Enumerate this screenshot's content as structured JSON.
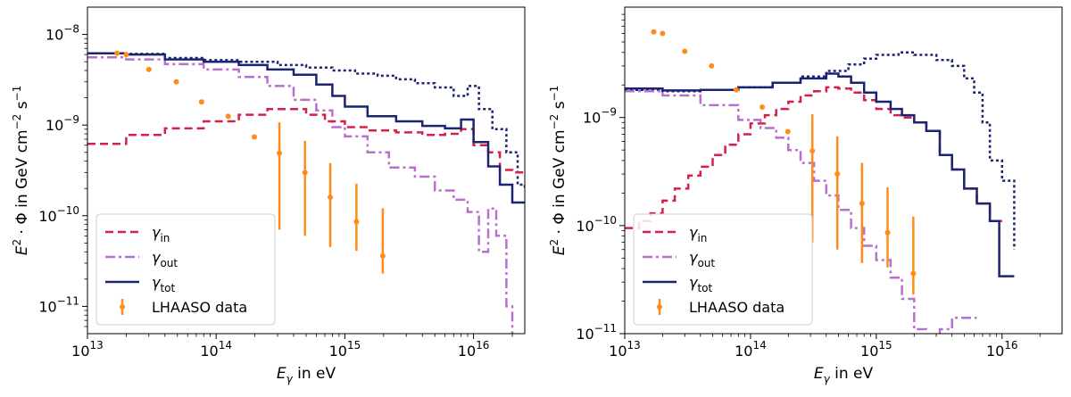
{
  "colors": {
    "gamma_in": "#d6204a",
    "gamma_out": "#b86fd0",
    "gamma_tot": "#1b2470",
    "total_dotted": "#1b2470",
    "lhaaso": "#ff8c1a"
  },
  "legend": {
    "gamma_in": {
      "sym": "γ",
      "sub": "in"
    },
    "gamma_out": {
      "sym": "γ",
      "sub": "out"
    },
    "gamma_tot": {
      "sym": "γ",
      "sub": "tot"
    },
    "lhaaso": "LHAASO data"
  },
  "axes": {
    "xlabel": {
      "E": "E",
      "sub": "γ",
      "rest": " in eV"
    },
    "ylabel": {
      "pre": "E",
      "sup": "2",
      "mid": " · Φ in GeV cm",
      "sup2": "−2",
      "mid2": " s",
      "sup3": "−1"
    }
  },
  "chart_data": [
    {
      "type": "line",
      "xscale": "log",
      "yscale": "log",
      "xlim": [
        10000000000000.0,
        2.5e+16
      ],
      "ylim": [
        5e-12,
        2e-08
      ],
      "xticks": [
        {
          "base": "10",
          "exp": "13",
          "v": 10000000000000.0
        },
        {
          "base": "10",
          "exp": "14",
          "v": 100000000000000.0
        },
        {
          "base": "10",
          "exp": "15",
          "v": 1000000000000000.0
        },
        {
          "base": "10",
          "exp": "16",
          "v": 1e+16
        }
      ],
      "yticks": [
        {
          "base": "10",
          "exp": "−11",
          "v": 1e-11
        },
        {
          "base": "10",
          "exp": "−10",
          "v": 1e-10
        },
        {
          "base": "10",
          "exp": "−9",
          "v": 1e-09
        },
        {
          "base": "10",
          "exp": "−8",
          "v": 1e-08
        }
      ],
      "legend_position": "lower-left",
      "series": [
        {
          "name": "gamma_tot_dotted",
          "style": "dotted",
          "x": [
            10000000000000.0,
            20000000000000.0,
            40000000000000.0,
            80000000000000.0,
            150000000000000.0,
            300000000000000.0,
            500000000000000.0,
            800000000000000.0,
            1200000000000000.0,
            1800000000000000.0,
            2500000000000000.0,
            3500000000000000.0,
            5000000000000000.0,
            7000000000000000.0,
            9000000000000000.0,
            1.1e+16,
            1.4e+16,
            1.8e+16,
            2.2e+16,
            2.5e+16
          ],
          "y": [
            6.2e-09,
            6.1e-09,
            5.5e-09,
            5.2e-09,
            5e-09,
            4.6e-09,
            4.3e-09,
            4e-09,
            3.7e-09,
            3.5e-09,
            3.2e-09,
            2.9e-09,
            2.6e-09,
            2.1e-09,
            2.7e-09,
            1.5e-09,
            9e-10,
            5e-10,
            2.2e-10,
            2e-10
          ]
        },
        {
          "name": "gamma_out",
          "style": "dashdot",
          "x": [
            10000000000000.0,
            20000000000000.0,
            40000000000000.0,
            80000000000000.0,
            150000000000000.0,
            250000000000000.0,
            400000000000000.0,
            600000000000000.0,
            800000000000000.0,
            1000000000000000.0,
            1500000000000000.0,
            2200000000000000.0,
            3500000000000000.0,
            5000000000000000.0,
            7000000000000000.0,
            9000000000000000.0,
            1.1e+16,
            1.3e+16,
            1.5e+16,
            1.8e+16,
            2e+16
          ],
          "y": [
            5.6e-09,
            5.3e-09,
            4.7e-09,
            4.1e-09,
            3.4e-09,
            2.7e-09,
            1.9e-09,
            1.45e-09,
            9.5e-10,
            7.5e-10,
            5e-10,
            3.4e-10,
            2.7e-10,
            1.9e-10,
            1.5e-10,
            1.1e-10,
            4e-11,
            1.2e-10,
            6e-11,
            1e-11,
            3e-12
          ]
        },
        {
          "name": "gamma_in",
          "style": "dashed",
          "x": [
            10000000000000.0,
            20000000000000.0,
            40000000000000.0,
            80000000000000.0,
            150000000000000.0,
            250000000000000.0,
            350000000000000.0,
            500000000000000.0,
            700000000000000.0,
            1000000000000000.0,
            1500000000000000.0,
            2500000000000000.0,
            4000000000000000.0,
            6000000000000000.0,
            8000000000000000.0,
            1e+16,
            1.3e+16,
            1.6e+16,
            2e+16,
            2.5e+16
          ],
          "y": [
            6.2e-10,
            7.8e-10,
            9.2e-10,
            1.1e-09,
            1.3e-09,
            1.5e-09,
            1.5e-09,
            1.3e-09,
            1.1e-09,
            9.5e-10,
            8.7e-10,
            8.3e-10,
            7.8e-10,
            8e-10,
            9e-10,
            6e-10,
            5e-10,
            3.2e-10,
            3e-10,
            3e-10
          ]
        },
        {
          "name": "gamma_tot",
          "style": "solid",
          "x": [
            10000000000000.0,
            20000000000000.0,
            40000000000000.0,
            80000000000000.0,
            150000000000000.0,
            250000000000000.0,
            400000000000000.0,
            600000000000000.0,
            800000000000000.0,
            1000000000000000.0,
            1500000000000000.0,
            2500000000000000.0,
            4000000000000000.0,
            6000000000000000.0,
            8000000000000000.0,
            1e+16,
            1.3e+16,
            1.6e+16,
            2e+16,
            2.5e+16
          ],
          "y": [
            6.2e-09,
            6e-09,
            5.3e-09,
            5e-09,
            4.6e-09,
            4.1e-09,
            3.6e-09,
            2.8e-09,
            2.1e-09,
            1.6e-09,
            1.25e-09,
            1.1e-09,
            9.8e-10,
            9.2e-10,
            1.15e-09,
            6.5e-10,
            3.5e-10,
            2.2e-10,
            1.4e-10,
            1.4e-10
          ]
        }
      ],
      "points": {
        "name": "LHAASO data",
        "x": [
          17000000000000.0,
          20000000000000.0,
          30000000000000.0,
          49000000000000.0,
          77000000000000.0,
          124000000000000.0,
          198000000000000.0,
          310000000000000.0,
          490000000000000.0,
          770000000000000.0,
          1230000000000000.0,
          1970000000000000.0
        ],
        "y": [
          6.2e-09,
          6e-09,
          4.1e-09,
          3e-09,
          1.8e-09,
          1.25e-09,
          7.4e-10,
          4.9e-10,
          3e-10,
          1.6e-10,
          8.6e-11,
          3.6e-11
        ],
        "err": [
          [
            0,
            0
          ],
          [
            0,
            0
          ],
          [
            0,
            0
          ],
          [
            0,
            0
          ],
          [
            0,
            0
          ],
          [
            0,
            0
          ],
          [
            0,
            0
          ],
          [
            4.2e-10,
            5.8e-10
          ],
          [
            2.4e-10,
            3.7e-10
          ],
          [
            1.15e-10,
            2.2e-10
          ],
          [
            4.5e-11,
            1.4e-10
          ],
          [
            1.3e-11,
            8.5e-11
          ]
        ]
      }
    },
    {
      "type": "line",
      "xscale": "log",
      "yscale": "log",
      "xlim": [
        10000000000000.0,
        3e+16
      ],
      "ylim": [
        1e-11,
        1.05e-08
      ],
      "xticks": [
        {
          "base": "10",
          "exp": "13",
          "v": 10000000000000.0
        },
        {
          "base": "10",
          "exp": "14",
          "v": 100000000000000.0
        },
        {
          "base": "10",
          "exp": "15",
          "v": 1000000000000000.0
        },
        {
          "base": "10",
          "exp": "16",
          "v": 1e+16
        }
      ],
      "yticks": [
        {
          "base": "10",
          "exp": "−11",
          "v": 1e-11
        },
        {
          "base": "10",
          "exp": "−10",
          "v": 1e-10
        },
        {
          "base": "10",
          "exp": "−9",
          "v": 1e-09
        }
      ],
      "legend_position": "lower-left",
      "series": [
        {
          "name": "gamma_tot_dotted",
          "style": "dotted",
          "x": [
            10000000000000.0,
            20000000000000.0,
            40000000000000.0,
            80000000000000.0,
            150000000000000.0,
            250000000000000.0,
            400000000000000.0,
            600000000000000.0,
            800000000000000.0,
            1000000000000000.0,
            1500000000000000.0,
            2000000000000000.0,
            3000000000000000.0,
            4000000000000000.0,
            5000000000000000.0,
            6000000000000000.0,
            7000000000000000.0,
            8000000000000000.0,
            1e+16,
            1.25e+16
          ],
          "y": [
            1.8e-09,
            1.75e-09,
            1.8e-09,
            1.9e-09,
            2.1e-09,
            2.4e-09,
            2.7e-09,
            3.1e-09,
            3.5e-09,
            3.8e-09,
            4e-09,
            3.8e-09,
            3.4e-09,
            3e-09,
            2.3e-09,
            1.7e-09,
            9e-10,
            4e-10,
            2.6e-10,
            6e-11
          ]
        },
        {
          "name": "gamma_in",
          "style": "dashed",
          "x": [
            10000000000000.0,
            13000000000000.0,
            16000000000000.0,
            20000000000000.0,
            25000000000000.0,
            32000000000000.0,
            40000000000000.0,
            50000000000000.0,
            63000000000000.0,
            80000000000000.0,
            100000000000000.0,
            130000000000000.0,
            160000000000000.0,
            200000000000000.0,
            250000000000000.0,
            320000000000000.0,
            400000000000000.0,
            500000000000000.0,
            630000000000000.0,
            800000000000000.0,
            1000000000000000.0,
            1300000000000000.0,
            1600000000000000.0,
            2000000000000000.0,
            2500000000000000.0,
            3200000000000000.0,
            4000000000000000.0,
            5000000000000000.0,
            6300000000000000.0,
            8000000000000000.0,
            1e+16
          ],
          "y": [
            9.5e-11,
            1.1e-10,
            1.3e-10,
            1.7e-10,
            2.2e-10,
            2.9e-10,
            3.5e-10,
            4.5e-10,
            5.6e-10,
            7e-10,
            8.8e-10,
            1.05e-09,
            1.2e-09,
            1.4e-09,
            1.6e-09,
            1.75e-09,
            1.9e-09,
            1.85e-09,
            1.7e-09,
            1.45e-09,
            1.2e-09,
            1.05e-09,
            1e-09,
            9e-10,
            7.5e-10,
            4.5e-10,
            3.3e-10,
            2.2e-10,
            1.6e-10,
            1.1e-10,
            1.1e-10
          ]
        },
        {
          "name": "gamma_out",
          "style": "dashdot",
          "x": [
            10000000000000.0,
            20000000000000.0,
            40000000000000.0,
            80000000000000.0,
            120000000000000.0,
            160000000000000.0,
            200000000000000.0,
            250000000000000.0,
            320000000000000.0,
            400000000000000.0,
            500000000000000.0,
            630000000000000.0,
            800000000000000.0,
            1000000000000000.0,
            1300000000000000.0,
            1600000000000000.0,
            2000000000000000.0,
            2500000000000000.0,
            3200000000000000.0,
            4000000000000000.0,
            5000000000000000.0,
            6300000000000000.0
          ],
          "y": [
            1.75e-09,
            1.6e-09,
            1.3e-09,
            9.5e-10,
            8e-10,
            6.5e-10,
            5e-10,
            3.8e-10,
            2.6e-10,
            1.9e-10,
            1.4e-10,
            9.5e-11,
            6.5e-11,
            4.8e-11,
            3.3e-11,
            2.1e-11,
            1.1e-11,
            7e-12,
            1.1e-11,
            1.4e-11,
            1.4e-11,
            1.4e-11
          ]
        },
        {
          "name": "gamma_tot",
          "style": "solid",
          "x": [
            10000000000000.0,
            20000000000000.0,
            40000000000000.0,
            80000000000000.0,
            150000000000000.0,
            250000000000000.0,
            400000000000000.0,
            500000000000000.0,
            630000000000000.0,
            800000000000000.0,
            1000000000000000.0,
            1300000000000000.0,
            1600000000000000.0,
            2000000000000000.0,
            2500000000000000.0,
            3200000000000000.0,
            4000000000000000.0,
            5000000000000000.0,
            6300000000000000.0,
            8000000000000000.0,
            9500000000000000.0,
            1.25e+16
          ],
          "y": [
            1.85e-09,
            1.78e-09,
            1.8e-09,
            1.9e-09,
            2.1e-09,
            2.3e-09,
            2.55e-09,
            2.4e-09,
            2.1e-09,
            1.7e-09,
            1.4e-09,
            1.2e-09,
            1.05e-09,
            9e-10,
            7.5e-10,
            4.5e-10,
            3.3e-10,
            2.2e-10,
            1.6e-10,
            1.1e-10,
            3.4e-11,
            3.4e-11
          ]
        }
      ],
      "points": {
        "name": "LHAASO data",
        "x": [
          17000000000000.0,
          20000000000000.0,
          30000000000000.0,
          49000000000000.0,
          77000000000000.0,
          124000000000000.0,
          198000000000000.0,
          310000000000000.0,
          490000000000000.0,
          770000000000000.0,
          1230000000000000.0,
          1970000000000000.0
        ],
        "y": [
          6.2e-09,
          6e-09,
          4.1e-09,
          3e-09,
          1.8e-09,
          1.25e-09,
          7.4e-10,
          4.9e-10,
          3e-10,
          1.6e-10,
          8.6e-11,
          3.6e-11
        ],
        "err": [
          [
            0,
            0
          ],
          [
            0,
            0
          ],
          [
            0,
            0
          ],
          [
            0,
            0
          ],
          [
            0,
            0
          ],
          [
            0,
            0
          ],
          [
            0,
            0
          ],
          [
            4.2e-10,
            5.8e-10
          ],
          [
            2.4e-10,
            3.7e-10
          ],
          [
            1.15e-10,
            2.2e-10
          ],
          [
            4.5e-11,
            1.4e-10
          ],
          [
            1.3e-11,
            8.5e-11
          ]
        ]
      }
    }
  ]
}
